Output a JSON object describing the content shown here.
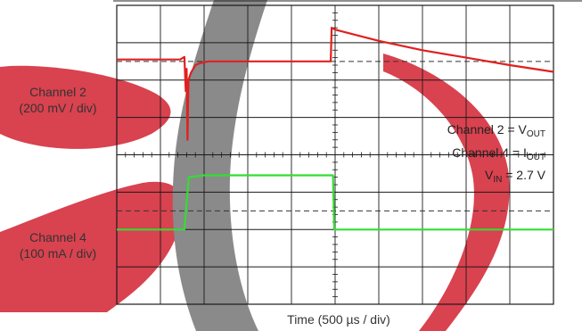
{
  "chart_data": {
    "type": "line",
    "grid": {
      "x_divisions": 10,
      "y_divisions": 8,
      "style": "oscilloscope",
      "center_crosshair_ticks": true
    },
    "xlabel": "Time (500 µs / div)",
    "xlim": [
      0,
      10
    ],
    "ylim": [
      0,
      8
    ],
    "reference_markers": [
      2.5,
      6.5
    ],
    "channel_labels": [
      {
        "name": "Channel 2",
        "scale": "(200 mV / div)"
      },
      {
        "name": "Channel 4",
        "scale": "(100 mA / div)"
      }
    ],
    "legend": [
      {
        "text": "Channel 2 = V",
        "sub": "OUT"
      },
      {
        "text": "Channel 4 = I",
        "sub": "OUT"
      },
      {
        "text": "V",
        "sub": "IN",
        "suffix": " = 2.7 V"
      }
    ],
    "series": [
      {
        "color": "#e02020",
        "points": [
          [
            0,
            6.55
          ],
          [
            1.45,
            6.55
          ],
          [
            1.55,
            6.62
          ],
          [
            1.58,
            5.7
          ],
          [
            1.6,
            6.3
          ],
          [
            1.62,
            4.4
          ],
          [
            1.64,
            6.0
          ],
          [
            1.7,
            6.2
          ],
          [
            1.8,
            6.4
          ],
          [
            1.9,
            6.45
          ],
          [
            2.1,
            6.5
          ],
          [
            2.5,
            6.5
          ],
          [
            3.5,
            6.5
          ],
          [
            4.9,
            6.5
          ],
          [
            4.92,
            7.4
          ],
          [
            5.0,
            7.35
          ],
          [
            6.0,
            7.05
          ],
          [
            7.0,
            6.8
          ],
          [
            8.0,
            6.6
          ],
          [
            9.0,
            6.4
          ],
          [
            10.0,
            6.22
          ]
        ]
      },
      {
        "color": "#33dd33",
        "points": [
          [
            0,
            2.0
          ],
          [
            1.55,
            2.0
          ],
          [
            1.65,
            3.4
          ],
          [
            2.0,
            3.45
          ],
          [
            3.0,
            3.45
          ],
          [
            4.0,
            3.45
          ],
          [
            4.95,
            3.45
          ],
          [
            4.98,
            2.0
          ],
          [
            6.0,
            2.0
          ],
          [
            8.0,
            2.0
          ],
          [
            10.0,
            2.0
          ]
        ]
      }
    ],
    "colors": {
      "watermark_red": "#d9424f",
      "watermark_gray": "#8a8a8a",
      "grid": "#1a1a1a",
      "marker": "#333333"
    }
  }
}
